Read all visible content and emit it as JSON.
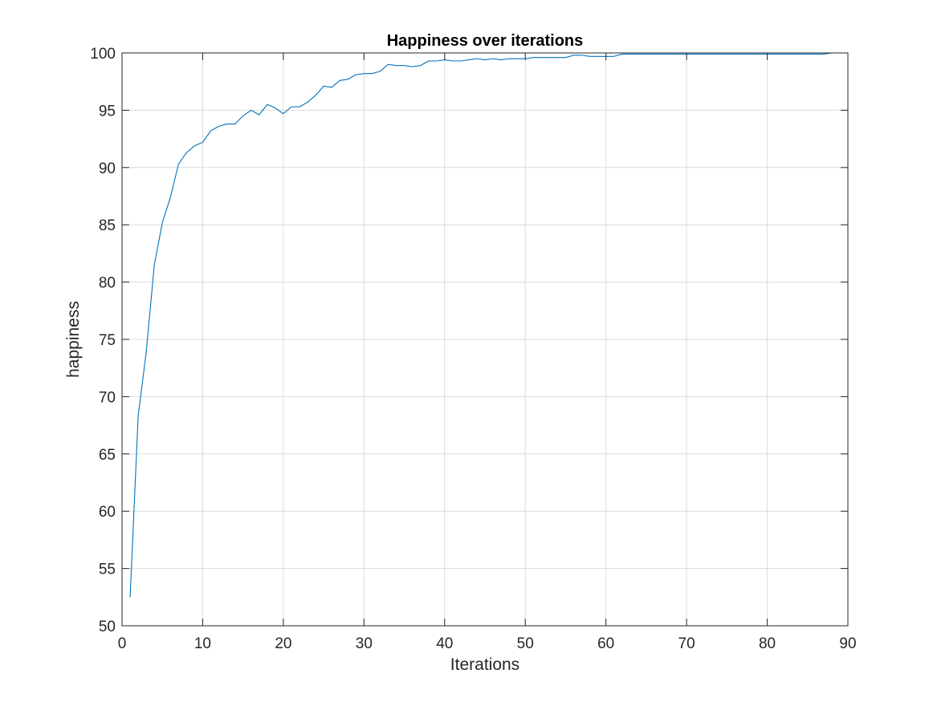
{
  "chart_data": {
    "type": "line",
    "title": "Happiness over iterations",
    "xlabel": "Iterations",
    "ylabel": "happiness",
    "xlim": [
      0,
      90
    ],
    "ylim": [
      50,
      100
    ],
    "xticks": [
      0,
      10,
      20,
      30,
      40,
      50,
      60,
      70,
      80,
      90
    ],
    "yticks": [
      50,
      55,
      60,
      65,
      70,
      75,
      80,
      85,
      90,
      95,
      100
    ],
    "xtick_labels": [
      "0",
      "10",
      "20",
      "30",
      "40",
      "50",
      "60",
      "70",
      "80",
      "90"
    ],
    "ytick_labels": [
      "50",
      "55",
      "60",
      "65",
      "70",
      "75",
      "80",
      "85",
      "90",
      "95",
      "100"
    ],
    "grid": true,
    "colors": {
      "line": "#0072BD",
      "grid": "#dcdcdc",
      "axes": "#262626"
    },
    "series": [
      {
        "name": "happiness",
        "x": [
          1,
          2,
          3,
          4,
          5,
          6,
          7,
          8,
          9,
          10,
          11,
          12,
          13,
          14,
          15,
          16,
          17,
          18,
          19,
          20,
          21,
          22,
          23,
          24,
          25,
          26,
          27,
          28,
          29,
          30,
          31,
          32,
          33,
          34,
          35,
          36,
          37,
          38,
          39,
          40,
          41,
          42,
          43,
          44,
          45,
          46,
          47,
          48,
          49,
          50,
          51,
          52,
          53,
          54,
          55,
          56,
          57,
          58,
          59,
          60,
          61,
          62,
          63,
          64,
          65,
          66,
          67,
          68,
          69,
          70,
          71,
          72,
          73,
          74,
          75,
          76,
          77,
          78,
          79,
          80,
          81,
          82,
          83,
          84,
          85,
          86,
          87,
          88
        ],
        "values": [
          52.5,
          68.3,
          73.9,
          81.5,
          85.2,
          87.4,
          90.3,
          91.3,
          91.9,
          92.2,
          93.2,
          93.6,
          93.8,
          93.8,
          94.5,
          95.0,
          94.6,
          95.5,
          95.2,
          94.7,
          95.3,
          95.3,
          95.7,
          96.3,
          97.1,
          97.0,
          97.6,
          97.7,
          98.1,
          98.2,
          98.2,
          98.4,
          99.0,
          98.9,
          98.9,
          98.8,
          98.9,
          99.3,
          99.3,
          99.4,
          99.3,
          99.3,
          99.4,
          99.5,
          99.4,
          99.5,
          99.4,
          99.5,
          99.5,
          99.5,
          99.6,
          99.6,
          99.6,
          99.6,
          99.6,
          99.8,
          99.8,
          99.7,
          99.7,
          99.7,
          99.7,
          99.9,
          99.9,
          99.9,
          99.9,
          99.9,
          99.9,
          99.9,
          99.9,
          99.9,
          99.9,
          99.9,
          99.9,
          99.9,
          99.9,
          99.9,
          99.9,
          99.9,
          99.9,
          99.9,
          99.9,
          99.9,
          99.9,
          99.9,
          99.9,
          99.9,
          99.9,
          100.0
        ]
      }
    ]
  }
}
